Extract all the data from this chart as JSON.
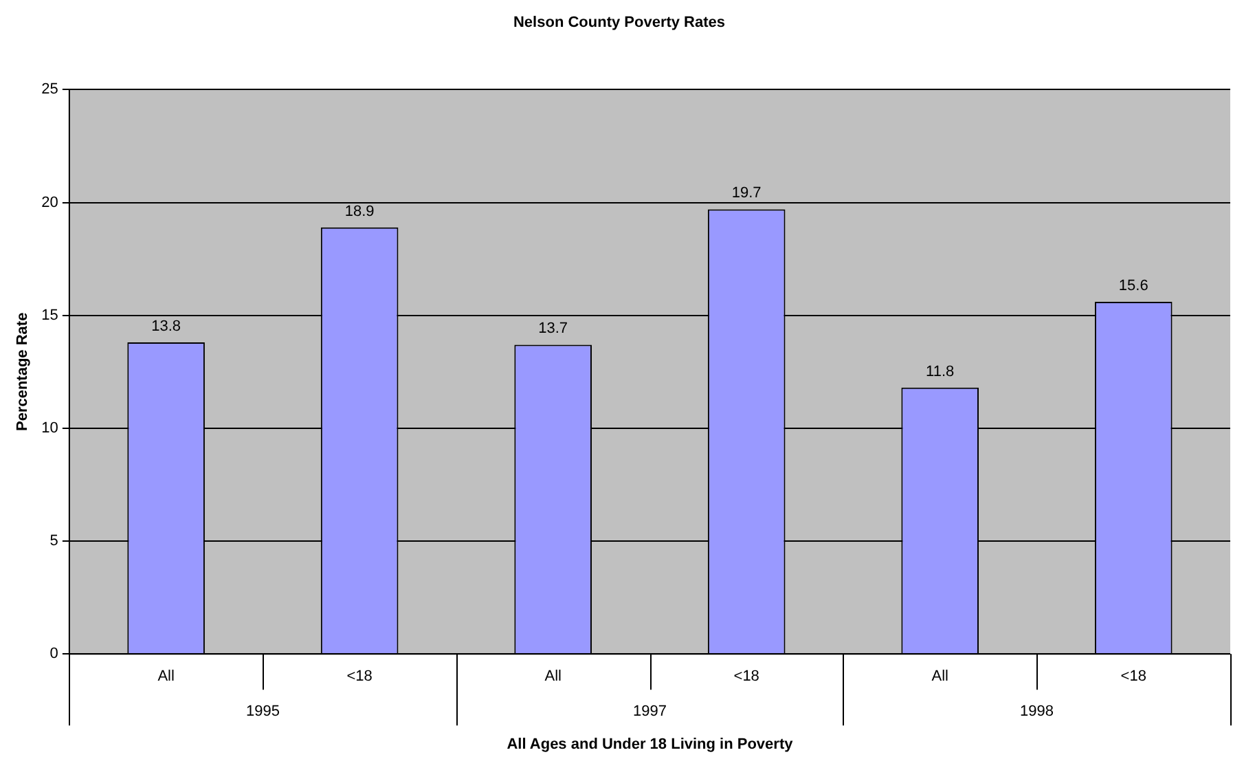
{
  "chart_data": {
    "type": "bar",
    "title": "Nelson County Poverty Rates",
    "xlabel": "All Ages and Under 18 Living in Poverty",
    "ylabel": "Percentage Rate",
    "categories": [
      "All",
      "<18",
      "All",
      "<18",
      "All",
      "<18"
    ],
    "values": [
      13.8,
      18.9,
      13.7,
      19.7,
      11.8,
      15.6
    ],
    "color": "#9999ff",
    "ylim": [
      0,
      25
    ],
    "yticks": [
      0,
      5,
      10,
      15,
      20,
      25
    ],
    "grid": "y",
    "data_labels": true,
    "annotations": [
      "1995",
      "1997",
      "1998"
    ]
  }
}
